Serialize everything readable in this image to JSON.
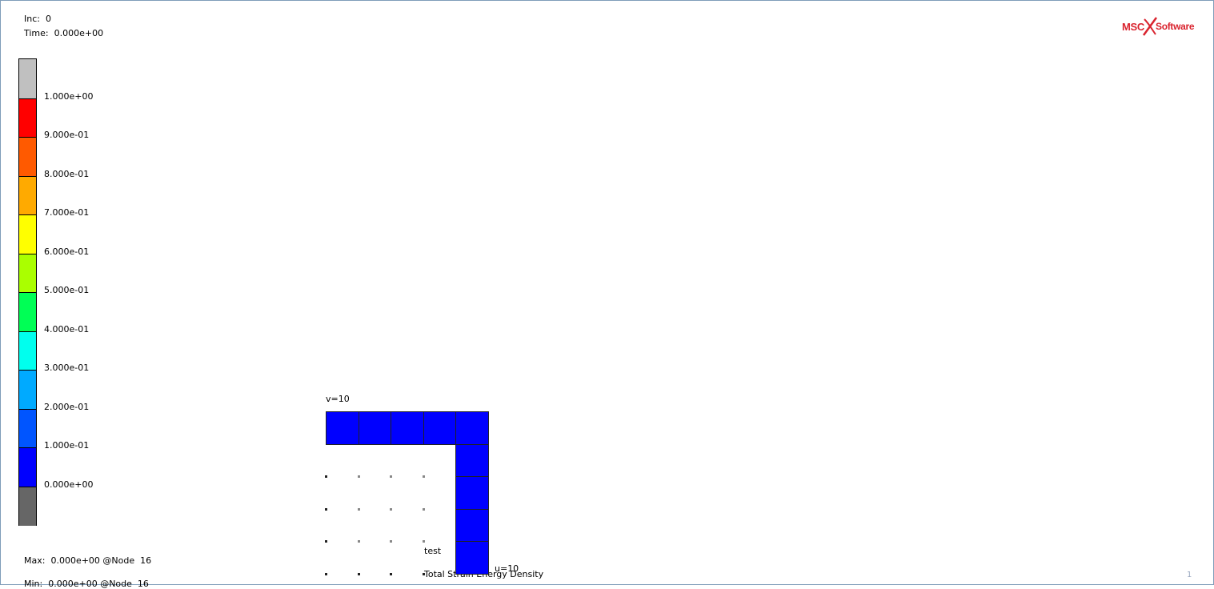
{
  "header": {
    "inc_label": "Inc:",
    "inc_value": "0",
    "time_label": "Time:",
    "time_value": "0.000e+00"
  },
  "legend": {
    "colors": [
      "#c0c0c0",
      "#ff0000",
      "#ff5a00",
      "#ffaa00",
      "#ffff00",
      "#aaff00",
      "#00ff55",
      "#00ffee",
      "#00aaff",
      "#0055ff",
      "#0000ff",
      "#666666"
    ],
    "ticks": [
      "1.000e+00",
      "9.000e-01",
      "8.000e-01",
      "7.000e-01",
      "6.000e-01",
      "5.000e-01",
      "4.000e-01",
      "3.000e-01",
      "2.000e-01",
      "1.000e-01",
      "0.000e+00"
    ]
  },
  "footer": {
    "max_label": "Max:",
    "max_value": "0.000e+00 @Node  16",
    "min_label": "Min:",
    "min_value": "0.000e+00 @Node  16",
    "job_name": "test",
    "result_name": "Total Strain Energy Density",
    "page_number": "1"
  },
  "model": {
    "label_v": "v=10",
    "label_u": "u=10",
    "element_color": "#0000ff"
  },
  "logo": {
    "left_text": "MSC",
    "right_text": "Software",
    "color": "#d9232e"
  }
}
